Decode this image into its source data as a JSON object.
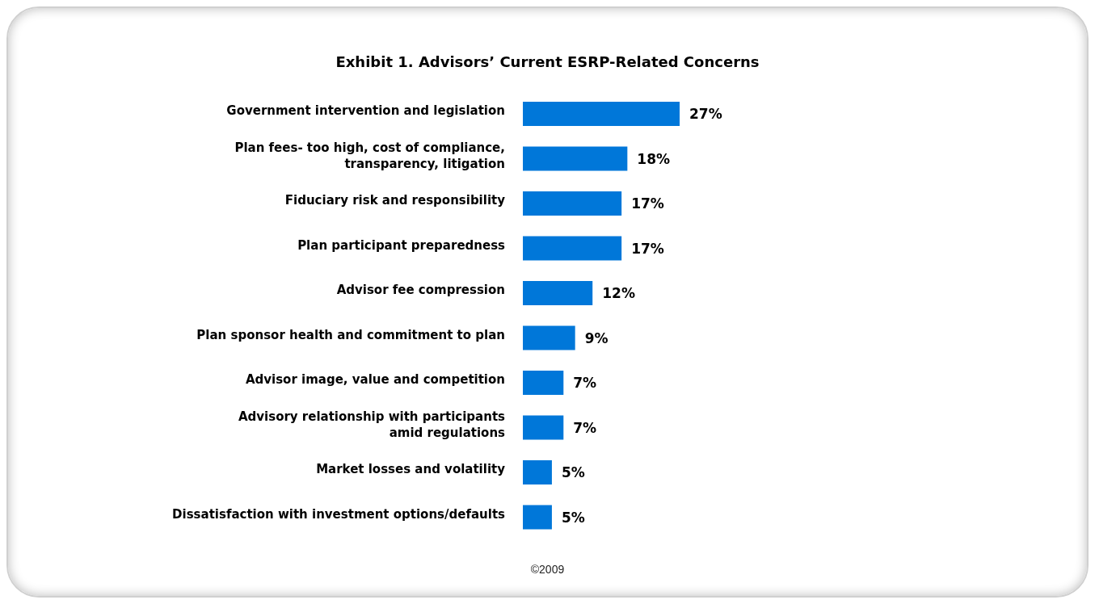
{
  "chart_data": {
    "type": "bar",
    "orientation": "horizontal",
    "title": "Exhibit 1. Advisors’ Current ESRP-Related Concerns",
    "categories": [
      "Government intervention and legislation",
      "Plan fees- too high, cost of compliance,\ntransparency, litigation",
      "Fiduciary risk and responsibility",
      "Plan participant preparedness",
      "Advisor fee compression",
      "Plan sponsor health and commitment to plan",
      "Advisor image, value and competition",
      "Advisory relationship with participants\namid regulations",
      "Market losses and volatility",
      "Dissatisfaction with investment options/defaults"
    ],
    "values": [
      27,
      18,
      17,
      17,
      12,
      9,
      7,
      7,
      5,
      5
    ],
    "value_labels": [
      "27%",
      "18%",
      "17%",
      "17%",
      "12%",
      "9%",
      "7%",
      "7%",
      "5%",
      "5%"
    ],
    "color": "#0077d9",
    "annotations": [
      "©2009"
    ]
  }
}
